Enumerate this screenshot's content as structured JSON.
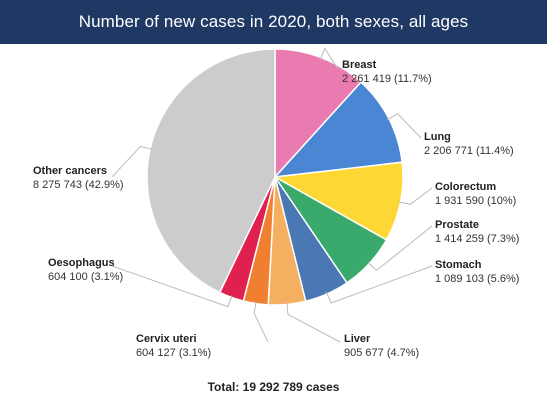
{
  "chart_data": {
    "type": "pie",
    "title": "Number of new cases in 2020, both sexes, all ages",
    "total_label": "Total: 19 292 789 cases",
    "slices": [
      {
        "name": "Breast",
        "value": 2261419,
        "value_label": "2 261 419 (11.7%)",
        "color": "#e97bb0"
      },
      {
        "name": "Lung",
        "value": 2206771,
        "value_label": "2 206 771 (11.4%)",
        "color": "#4a86d4"
      },
      {
        "name": "Colorectum",
        "value": 1931590,
        "value_label": "1 931 590 (10%)",
        "color": "#fdd835"
      },
      {
        "name": "Prostate",
        "value": 1414259,
        "value_label": "1 414 259 (7.3%)",
        "color": "#3aaa6c"
      },
      {
        "name": "Stomach",
        "value": 1089103,
        "value_label": "1 089 103 (5.6%)",
        "color": "#4a78b4"
      },
      {
        "name": "Liver",
        "value": 905677,
        "value_label": "905 677 (4.7%)",
        "color": "#f4b060"
      },
      {
        "name": "Cervix uteri",
        "value": 604127,
        "value_label": "604 127 (3.1%)",
        "color": "#f08030"
      },
      {
        "name": "Oesophagus",
        "value": 604100,
        "value_label": "604 100 (3.1%)",
        "color": "#e0204e"
      },
      {
        "name": "Other cancers",
        "value": 8275743,
        "value_label": "8 275 743 (42.9%)",
        "color": "#cccccc"
      }
    ]
  }
}
